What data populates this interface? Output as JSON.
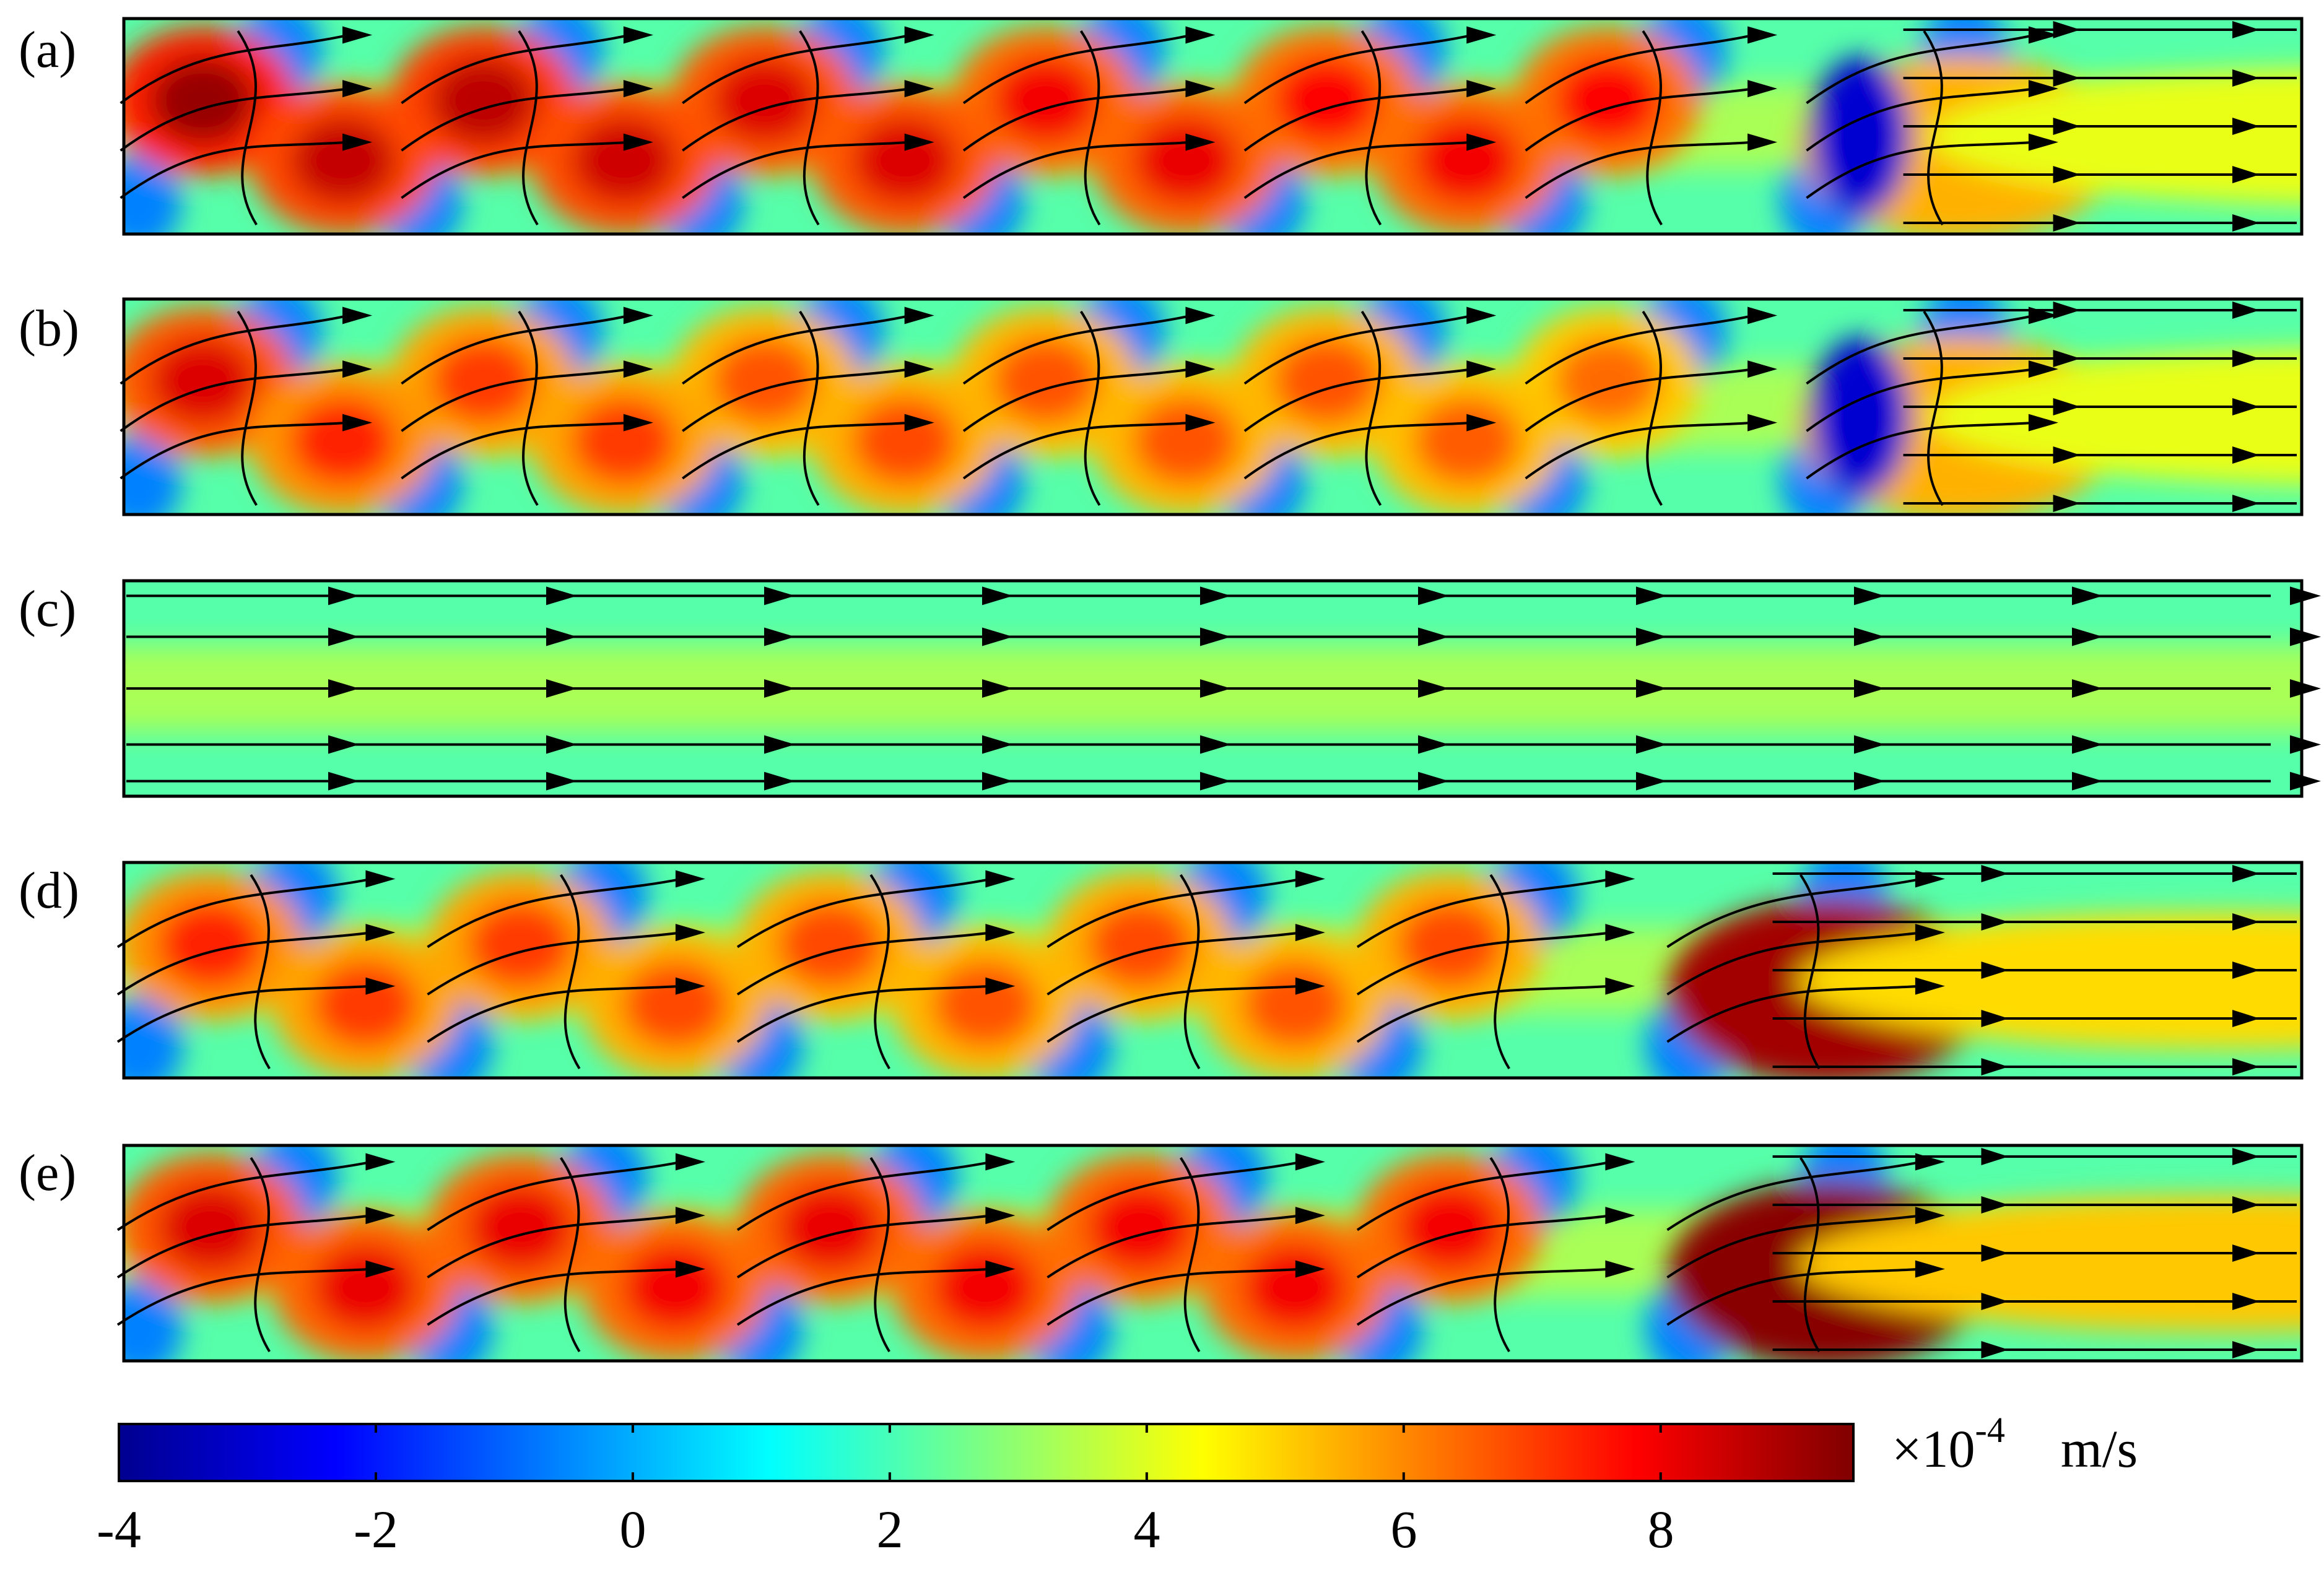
{
  "panels": [
    {
      "label": "(a)",
      "mode": "vortex",
      "top_vortex_strength": [
        1.0,
        0.92,
        0.85,
        0.8,
        0.78,
        0.78
      ],
      "bottom_vortex_strength": [
        0.9,
        0.88,
        0.85,
        0.82,
        0.8
      ],
      "outflow_strength": 0.45
    },
    {
      "label": "(b)",
      "mode": "vortex",
      "top_vortex_strength": [
        0.85,
        0.65,
        0.6,
        0.6,
        0.6,
        0.55
      ],
      "bottom_vortex_strength": [
        0.7,
        0.65,
        0.62,
        0.6,
        0.58
      ],
      "outflow_strength": 0.45
    },
    {
      "label": "(c)",
      "mode": "uniform",
      "top_vortex_strength": [],
      "bottom_vortex_strength": [],
      "outflow_strength": 0.5
    },
    {
      "label": "(d)",
      "mode": "vortex",
      "top_vortex_strength": [
        0.7,
        0.65,
        0.62,
        0.62,
        0.62
      ],
      "bottom_vortex_strength": [
        0.65,
        0.62,
        0.6,
        0.6
      ],
      "outflow_strength": 1.1
    },
    {
      "label": "(e)",
      "mode": "vortex",
      "top_vortex_strength": [
        0.85,
        0.82,
        0.82,
        0.8,
        0.8
      ],
      "bottom_vortex_strength": [
        0.82,
        0.8,
        0.8,
        0.8
      ],
      "outflow_strength": 1.3
    }
  ],
  "colorbar": {
    "min": -4,
    "max": 9.5,
    "ticks": [
      -4,
      -2,
      0,
      2,
      4,
      6,
      8
    ],
    "tick_labels": [
      "-4",
      "-2",
      "0",
      "2",
      "4",
      "6",
      "8"
    ],
    "multiplier_prefix": "×10",
    "multiplier_exponent": "-4",
    "unit": "m/s"
  },
  "colormap": [
    "#00008f",
    "#0000ff",
    "#00ffff",
    "#ffff00",
    "#ff0000",
    "#800000"
  ]
}
